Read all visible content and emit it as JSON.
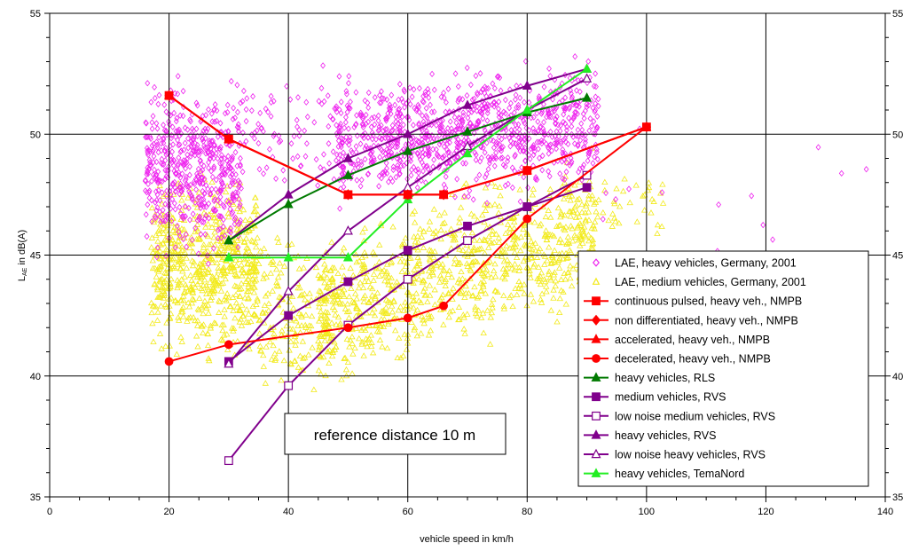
{
  "chart_data": {
    "type": "scatter",
    "xlabel": "vehicle speed in km/h",
    "ylabel": "L",
    "ylabel_sub": "AE",
    "ylabel_unit": " in dB(A)",
    "xlim": [
      0,
      140
    ],
    "ylim": [
      35,
      55
    ],
    "x_ticks": [
      "0",
      "20",
      "40",
      "60",
      "80",
      "100",
      "120",
      "140"
    ],
    "y_ticks": [
      "35",
      "40",
      "45",
      "50",
      "55"
    ],
    "grid": "major gridlines at every labeled tick; minor tick marks every 5 km/h and 1 dB(A)",
    "y_axis_mirrored_right": true,
    "annotation": "reference distance 10 m",
    "legend_position": "bottom-right",
    "scatter_series": [
      {
        "name": "LAE, heavy vehicles, Germany, 2001",
        "color": "#ee22ee",
        "marker": "diamond-open",
        "approx_count": 2000,
        "x_range": [
          16,
          138
        ],
        "y_range": [
          41.5,
          55
        ],
        "note": "dense cloud between 16-32 km/h (about 44-53 dB) and 48-92 km/h (about 45-54 dB)"
      },
      {
        "name": "LAE, medium vehicles, Germany, 2001",
        "color": "#f2ea1a",
        "marker": "triangle-open",
        "approx_count": 2000,
        "x_range": [
          17,
          103
        ],
        "y_range": [
          35,
          54
        ],
        "note": "dense cloud between 18-35 km/h (about 37-49 dB) and 45-92 km/h (about 38-50 dB)"
      }
    ],
    "line_series": [
      {
        "name": "continuous pulsed, heavy veh., NMPB",
        "color": "#ff0000",
        "marker": "square-filled",
        "x": [
          20,
          30,
          50,
          60,
          66,
          80,
          100
        ],
        "y": [
          51.6,
          49.8,
          47.5,
          47.5,
          47.5,
          48.5,
          50.3
        ]
      },
      {
        "name": "non differentiated, heavy veh., NMPB",
        "color": "#ff0000",
        "marker": "diamond-filled",
        "x": [
          20,
          30,
          50,
          60,
          66,
          80,
          100
        ],
        "y": [
          51.6,
          49.8,
          47.5,
          47.5,
          47.5,
          48.5,
          50.3
        ]
      },
      {
        "name": "accelerated, heavy veh., NMPB",
        "color": "#ff0000",
        "marker": "triangle-filled",
        "x": [
          20,
          30,
          50,
          60,
          66,
          80,
          100
        ],
        "y": [
          51.6,
          49.8,
          47.5,
          47.5,
          47.5,
          48.5,
          50.3
        ]
      },
      {
        "name": "decelerated, heavy veh., NMPB",
        "color": "#ff0000",
        "marker": "circle-filled",
        "x": [
          20,
          30,
          50,
          60,
          66,
          80,
          100
        ],
        "y": [
          40.6,
          41.3,
          42.0,
          42.4,
          42.9,
          46.5,
          50.3
        ]
      },
      {
        "name": "heavy vehicles, RLS",
        "color": "#007a00",
        "marker": "triangle-filled",
        "x": [
          30,
          40,
          50,
          60,
          70,
          80,
          90
        ],
        "y": [
          45.6,
          47.1,
          48.3,
          49.3,
          50.1,
          50.9,
          51.5
        ]
      },
      {
        "name": "medium vehicles, RVS",
        "color": "#80008c",
        "marker": "square-filled",
        "x": [
          30,
          40,
          50,
          60,
          70,
          80,
          90
        ],
        "y": [
          40.6,
          42.5,
          43.9,
          45.2,
          46.2,
          47.0,
          47.8
        ]
      },
      {
        "name": "low noise medium vehicles, RVS",
        "color": "#80008c",
        "marker": "square-open",
        "x": [
          30,
          40,
          50,
          60,
          70,
          80,
          90
        ],
        "y": [
          36.5,
          39.6,
          42.1,
          44.0,
          45.6,
          47.0,
          48.3
        ]
      },
      {
        "name": "heavy vehicles, RVS",
        "color": "#80008c",
        "marker": "triangle-filled",
        "x": [
          30,
          40,
          50,
          60,
          70,
          80,
          90
        ],
        "y": [
          45.6,
          47.5,
          49.0,
          50.0,
          51.2,
          52.0,
          52.7
        ]
      },
      {
        "name": "low noise heavy vehicles, RVS",
        "color": "#80008c",
        "marker": "triangle-open",
        "x": [
          30,
          40,
          50,
          60,
          70,
          80,
          90
        ],
        "y": [
          40.5,
          43.5,
          46.0,
          47.8,
          49.5,
          51.0,
          52.3
        ]
      },
      {
        "name": "heavy vehicles, TemaNord",
        "color": "#22ee22",
        "marker": "triangle-filled",
        "x": [
          30,
          40,
          50,
          60,
          70,
          80,
          90
        ],
        "y": [
          44.9,
          44.9,
          44.9,
          47.3,
          49.2,
          51.0,
          52.7
        ]
      }
    ]
  }
}
